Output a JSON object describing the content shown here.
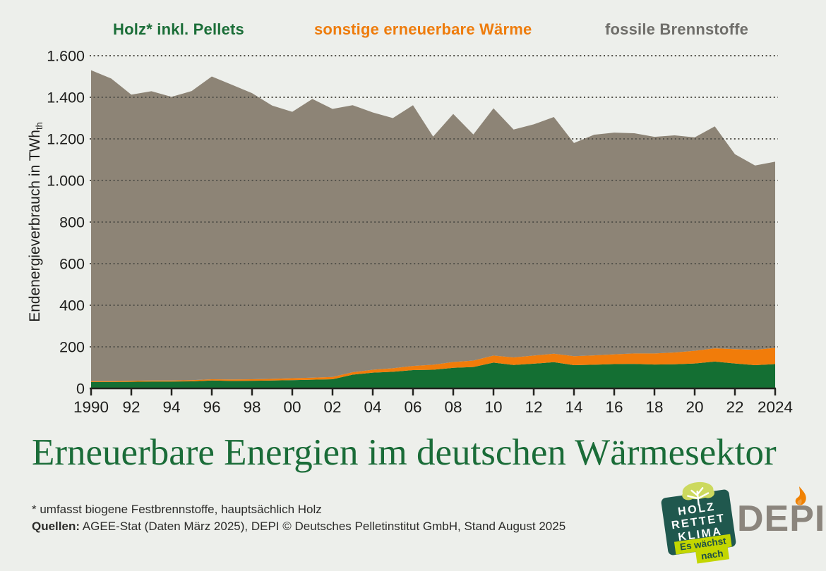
{
  "legend": {
    "items": [
      {
        "label": "Holz* inkl. Pellets",
        "color": "#1b6e38",
        "x": 160
      },
      {
        "label": "sonstige erneuerbare Wärme",
        "color": "#ee7c0c",
        "x": 445
      },
      {
        "label": "fossile Brennstoffe",
        "color": "#6f6e6a",
        "x": 857
      }
    ]
  },
  "chart_data": {
    "type": "area",
    "stacked": true,
    "x": [
      1990,
      1991,
      1992,
      1993,
      1994,
      1995,
      1996,
      1997,
      1998,
      1999,
      2000,
      2001,
      2002,
      2003,
      2004,
      2005,
      2006,
      2007,
      2008,
      2009,
      2010,
      2011,
      2012,
      2013,
      2014,
      2015,
      2016,
      2017,
      2018,
      2019,
      2020,
      2021,
      2022,
      2023,
      2024
    ],
    "series": [
      {
        "name": "Holz* inkl. Pellets",
        "color": "#146f33",
        "values": [
          31,
          31,
          32,
          33,
          33,
          34,
          38,
          36,
          37,
          38,
          40,
          42,
          44,
          66,
          76,
          80,
          88,
          90,
          99,
          103,
          124,
          113,
          119,
          126,
          112,
          114,
          117,
          118,
          115,
          116,
          120,
          129,
          120,
          112,
          117
        ]
      },
      {
        "name": "sonstige erneuerbare Wärme",
        "color": "#f17c0a",
        "values": [
          4,
          4,
          5,
          5,
          5,
          6,
          6,
          7,
          7,
          8,
          9,
          10,
          11,
          12,
          14,
          17,
          20,
          24,
          28,
          31,
          34,
          36,
          39,
          41,
          43,
          45,
          47,
          50,
          53,
          57,
          61,
          64,
          69,
          74,
          78
        ]
      },
      {
        "name": "fossile Brennstoffe",
        "color": "#8d8476",
        "values": [
          1495,
          1455,
          1376,
          1391,
          1364,
          1390,
          1456,
          1417,
          1376,
          1314,
          1281,
          1340,
          1289,
          1284,
          1237,
          1203,
          1254,
          1097,
          1193,
          1087,
          1189,
          1096,
          1112,
          1138,
          1025,
          1061,
          1066,
          1059,
          1042,
          1044,
          1026,
          1067,
          937,
          886,
          895
        ]
      }
    ],
    "ylabel": "Endenergieverbrauch in TWh",
    "ylabel_subscript": "th",
    "ylim": [
      0,
      1600
    ],
    "ytick_step": 200,
    "ytick_labels": [
      "0",
      "200",
      "400",
      "600",
      "800",
      "1.000",
      "1.200",
      "1.400",
      "1.600"
    ],
    "xtick_labels": [
      "1990",
      "92",
      "94",
      "96",
      "98",
      "00",
      "02",
      "04",
      "06",
      "08",
      "10",
      "12",
      "14",
      "16",
      "18",
      "20",
      "22",
      "2024"
    ],
    "grid": "dotted horizontal, drawn over areas",
    "legend_position": "top"
  },
  "title": "Erneuerbare Energien im deutschen Wärmesektor",
  "footnote": "* umfasst biogene Festbrennstoffe, hauptsächlich Holz",
  "source_label": "Quellen:",
  "source_text": " AGEE-Stat (Daten März 2025), DEPI © Deutsches Pelletinstitut GmbH, Stand August 2025",
  "logos": {
    "holz_rettet_klima": {
      "lines": [
        "HOLZ",
        "RETTET",
        "KLIMA"
      ],
      "ribbon_line1": "Es wächst",
      "ribbon_line2": "nach",
      "badge_color": "#20584e",
      "ribbon_color": "#c3d600",
      "leaf_color": "#ccd95e"
    },
    "depi": {
      "text": "DEPI",
      "color": "#8b857d",
      "flame_color": "#f08204"
    }
  }
}
